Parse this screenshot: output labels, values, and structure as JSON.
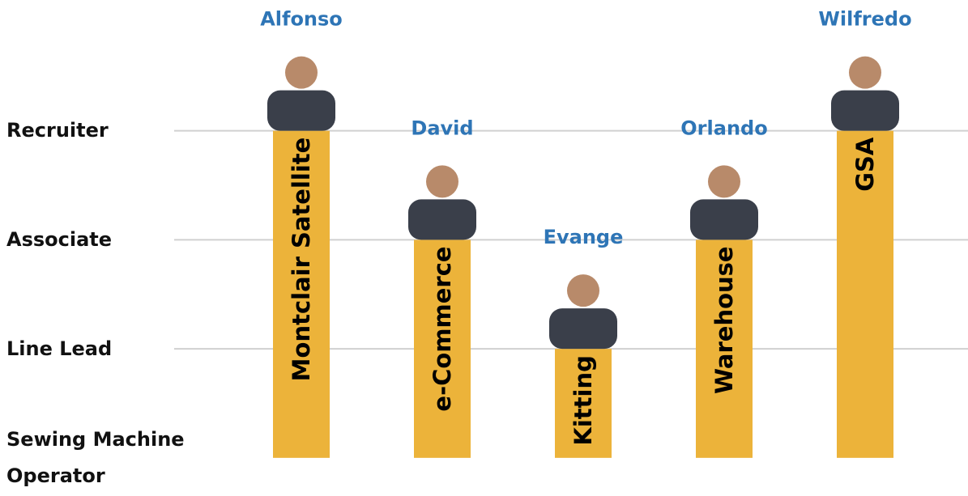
{
  "chart_data": {
    "type": "bar",
    "categories": [
      "Montclair Satellite",
      "e-Commerce",
      "Kitting",
      "Warehouse",
      "GSA"
    ],
    "values": [
      3,
      2,
      1,
      2,
      3
    ],
    "annotations": [
      "Alfonso",
      "David",
      "Evange",
      "Orlando",
      "Wilfredo"
    ],
    "color": "#ecb33a",
    "annotation_color": "#2e75b6",
    "ylim": [
      -0.35,
      4.2
    ],
    "yticks": [
      {
        "value": 0,
        "label": "Sewing Machine Operator"
      },
      {
        "value": 1,
        "label": "Line Lead"
      },
      {
        "value": 2,
        "label": "Associate"
      },
      {
        "value": 3,
        "label": "Recruiter"
      }
    ],
    "grid": true
  }
}
